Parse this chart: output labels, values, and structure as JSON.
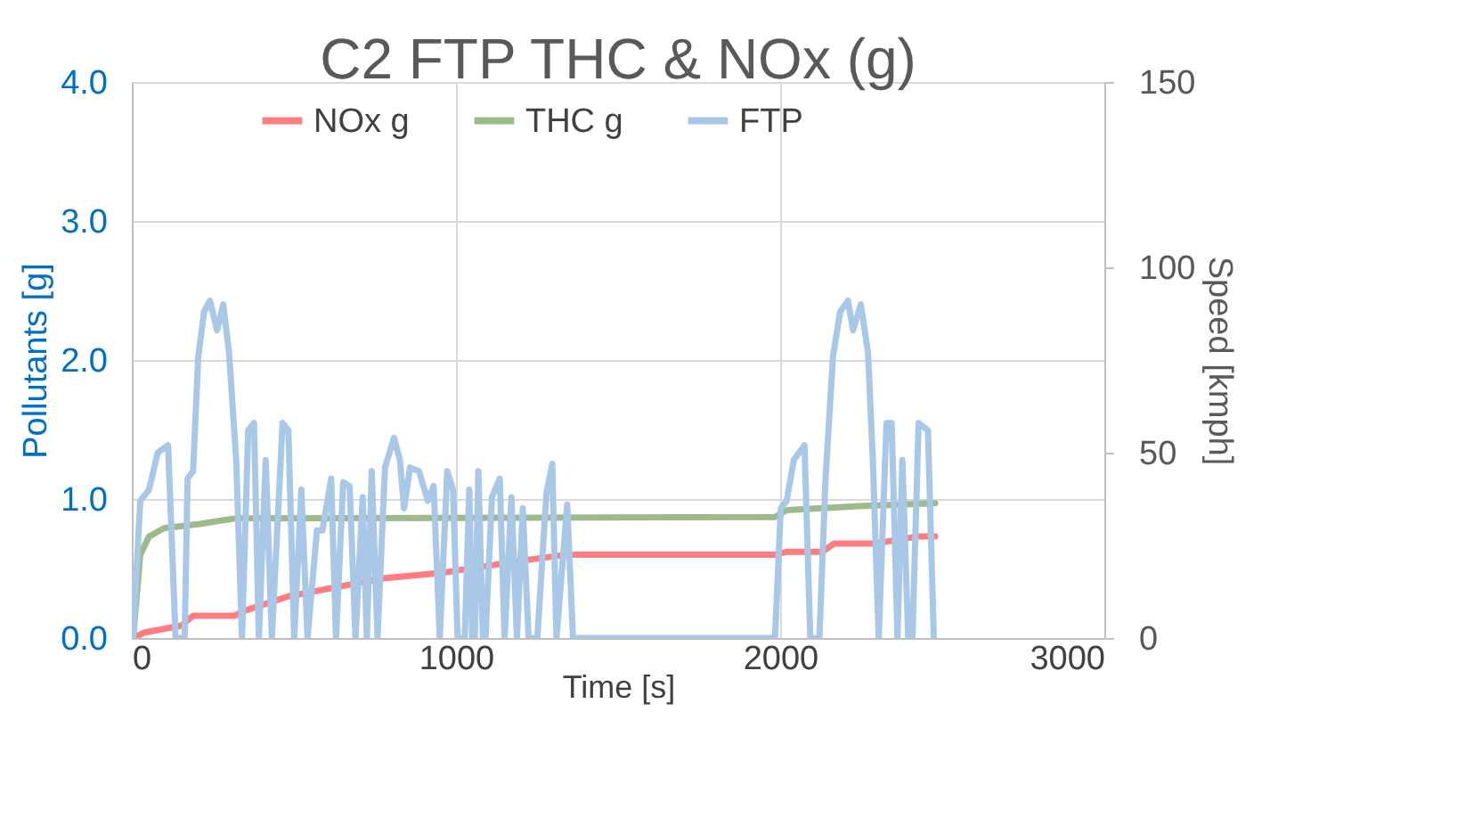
{
  "chart_data": {
    "type": "line",
    "title": "C2 FTP THC & NOx (g)",
    "xlabel": "Time [s]",
    "ylabel": "Pollutants [g]",
    "y2label": "Speed [kmph]",
    "xlim": [
      0,
      3000
    ],
    "xticks": [
      0,
      1000,
      2000,
      3000
    ],
    "ylim": [
      0,
      4
    ],
    "yticks": [
      {
        "value": 0,
        "label": "0.0"
      },
      {
        "value": 1,
        "label": "1.0"
      },
      {
        "value": 2,
        "label": "2.0"
      },
      {
        "value": 3,
        "label": "3.0"
      },
      {
        "value": 4,
        "label": "4.0"
      }
    ],
    "y2lim": [
      0,
      150
    ],
    "y2ticks": [
      0,
      50,
      100,
      150
    ],
    "grid": true,
    "legend": "top",
    "marker": "none",
    "line_style": "solid",
    "series": [
      {
        "name": "NOx g",
        "color": "#ff7c80",
        "x": [
          4,
          40,
          154,
          189,
          318,
          340,
          483,
          776,
          959,
          1215,
          1343,
          1984,
          2020,
          2130,
          2167,
          2295,
          2423,
          2478
        ],
        "values": [
          0,
          0.04,
          0.09,
          0.16,
          0.16,
          0.19,
          0.3,
          0.43,
          0.47,
          0.56,
          0.6,
          0.6,
          0.62,
          0.62,
          0.68,
          0.68,
          0.73,
          0.73
        ]
      },
      {
        "name": "THC g",
        "color": "#9dbb8a",
        "x": [
          4,
          26,
          53,
          99,
          210,
          318,
          1984,
          2020,
          2258,
          2478
        ],
        "values": [
          0,
          0.6,
          0.73,
          0.79,
          0.82,
          0.86,
          0.87,
          0.92,
          0.95,
          0.97
        ]
      },
      {
        "name": "FTP",
        "color": "#a9c8e8",
        "axis": "y2",
        "x": [
          4,
          26,
          53,
          80,
          112,
          135,
          163,
          172,
          189,
          205,
          223,
          241,
          263,
          282,
          300,
          322,
          340,
          359,
          377,
          392,
          413,
          432,
          465,
          483,
          501,
          523,
          542,
          571,
          588,
          615,
          630,
          652,
          672,
          690,
          712,
          725,
          740,
          758,
          781,
          809,
          827,
          840,
          858,
          886,
          913,
          931,
          950,
          973,
          991,
          1005,
          1027,
          1041,
          1050,
          1058,
          1069,
          1083,
          1091,
          1111,
          1135,
          1150,
          1171,
          1188,
          1206,
          1224,
          1251,
          1279,
          1297,
          1310,
          1343,
          1361,
          1984,
          2002,
          2020,
          2042,
          2075,
          2093,
          2121,
          2140,
          2163,
          2185,
          2209,
          2225,
          2249,
          2271,
          2286,
          2304,
          2328,
          2344,
          2362,
          2377,
          2395,
          2408,
          2427,
          2456,
          2474
        ],
        "values": [
          0,
          37,
          40,
          50,
          52,
          0,
          0,
          43,
          45,
          76,
          88,
          91,
          83,
          90,
          77,
          48,
          0,
          56,
          58,
          0,
          48,
          0,
          58,
          56,
          0,
          40,
          0,
          29,
          29,
          43,
          0,
          42,
          41,
          0,
          38,
          0,
          45,
          0,
          46,
          54,
          48,
          35,
          46,
          45,
          37,
          41,
          0,
          45,
          40,
          0,
          0,
          40,
          0,
          0,
          45,
          0,
          0,
          38,
          43,
          0,
          38,
          0,
          35,
          0,
          0,
          39,
          47,
          0,
          36,
          0,
          0,
          35,
          37,
          48,
          52,
          0,
          0,
          43,
          76,
          88,
          91,
          83,
          90,
          77,
          48,
          0,
          58,
          58,
          0,
          48,
          0,
          0,
          58,
          56,
          0
        ]
      }
    ]
  }
}
